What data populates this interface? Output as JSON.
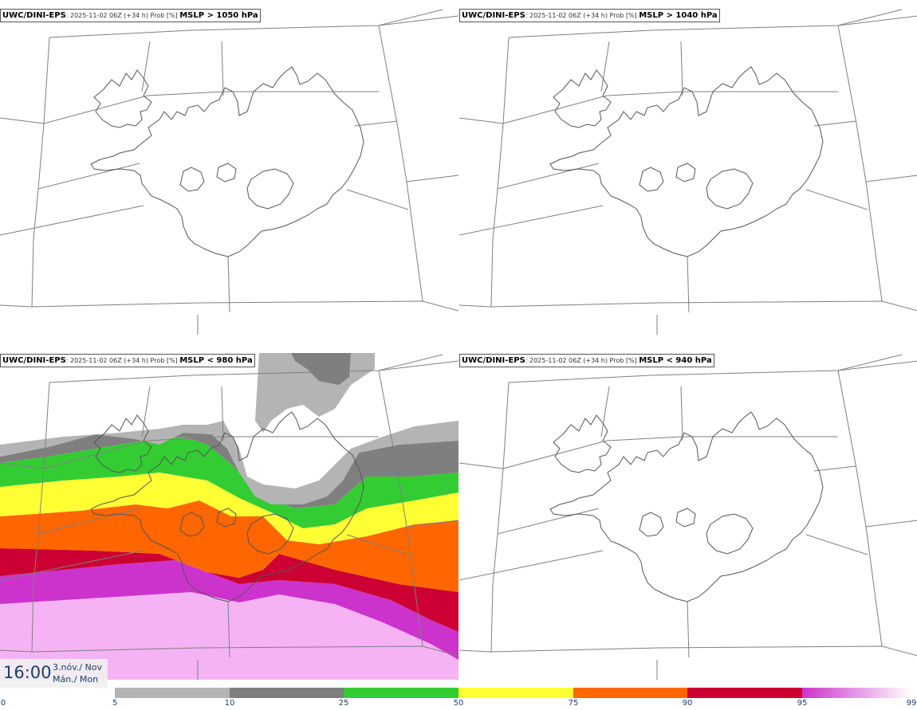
{
  "panels": [
    {
      "source": "UWC/DINI-EPS",
      "meta": ": 2025-11-02 06Z (+34 h) Prob [%] ",
      "threshold": "MSLP > 1050 hPa"
    },
    {
      "source": "UWC/DINI-EPS",
      "meta": ": 2025-11-02 06Z (+34 h) Prob [%] ",
      "threshold": "MSLP > 1040 hPa"
    },
    {
      "source": "UWC/DINI-EPS",
      "meta": ": 2025-11-02 06Z (+34 h) Prob [%] ",
      "threshold": "MSLP < 980 hPa"
    },
    {
      "source": "UWC/DINI-EPS",
      "meta": ": 2025-11-02 06Z (+34 h) Prob [%] ",
      "threshold": "MSLP < 940 hPa"
    }
  ],
  "time": {
    "clock": "16:00",
    "date_line1": "3.nóv./ Nov",
    "date_line2": "Mán./ Mon"
  },
  "legend": {
    "colors": [
      "#ffffff",
      "#b4b4b4",
      "#7f7f7f",
      "#33cc33",
      "#ffff33",
      "#ff6600",
      "#cc0033",
      "#cc33cc",
      "#f5b3f5"
    ],
    "ticks": [
      "0",
      "5",
      "10",
      "25",
      "50",
      "75",
      "90",
      "95",
      "99"
    ]
  },
  "colors": {
    "coast": "#555555",
    "grid": "#7f7f7f",
    "gray_light": "#b4b4b4",
    "gray_dark": "#7f7f7f",
    "green": "#33cc33",
    "yellow": "#ffff33",
    "orange": "#ff6600",
    "red": "#cc0033",
    "magenta": "#cc33cc",
    "pink": "#f5b3f5"
  }
}
